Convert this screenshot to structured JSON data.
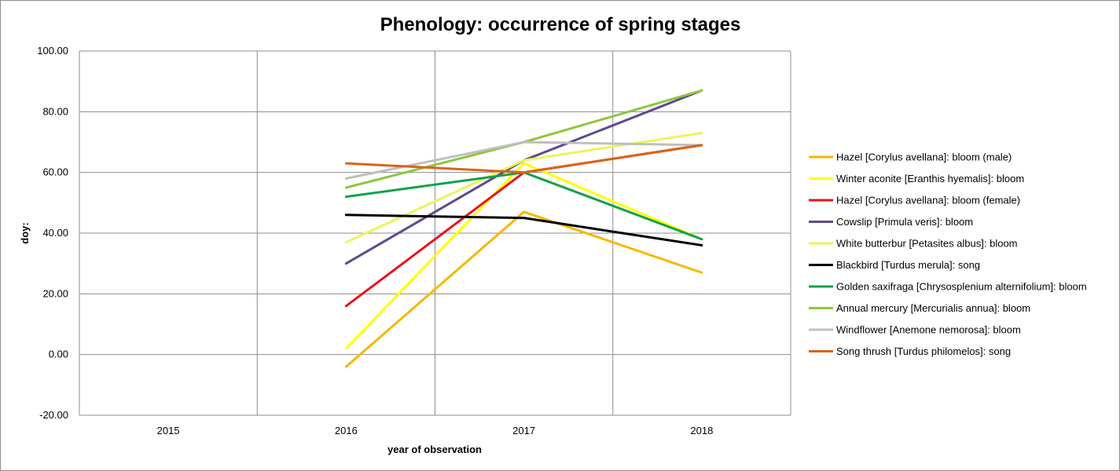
{
  "chart_data": {
    "type": "line",
    "title": "Phenology: occurrence of spring stages",
    "xlabel": "year of observation",
    "ylabel": "doy:",
    "categories": [
      "2015",
      "2016",
      "2017",
      "2018"
    ],
    "y_tick_labels": [
      "-20.00",
      "0.00",
      "20.00",
      "40.00",
      "60.00",
      "80.00",
      "100.00"
    ],
    "ylim": [
      -20,
      100
    ],
    "grid": true,
    "legend_position": "right",
    "series": [
      {
        "name": "Hazel [Corylus avellana]: bloom (male)",
        "color": "#f5b800",
        "values": [
          null,
          -4,
          47,
          27
        ]
      },
      {
        "name": "Winter aconite [Eranthis hyemalis]: bloom",
        "color": "#ffff00",
        "values": [
          null,
          2,
          63,
          38
        ]
      },
      {
        "name": "Hazel [Corylus avellana]: bloom (female)",
        "color": "#e8141c",
        "values": [
          null,
          16,
          60,
          69
        ]
      },
      {
        "name": "Cowslip [Primula veris]: bloom",
        "color": "#5e4a8b",
        "values": [
          null,
          30,
          64,
          87
        ]
      },
      {
        "name": "White butterbur [Petasites albus]: bloom",
        "color": "#eaf55a",
        "values": [
          null,
          37,
          64,
          73
        ]
      },
      {
        "name": "Blackbird [Turdus merula]: song",
        "color": "#000000",
        "values": [
          null,
          46,
          45,
          36
        ]
      },
      {
        "name": "Golden saxifraga [Chrysosplenium alternifolium]: bloom",
        "color": "#12a14a",
        "values": [
          null,
          52,
          60,
          38
        ]
      },
      {
        "name": "Annual mercury [Mercurialis annua]: bloom",
        "color": "#8dc63f",
        "values": [
          null,
          55,
          70,
          87
        ]
      },
      {
        "name": "Windflower [Anemone nemorosa]: bloom",
        "color": "#bfbfbf",
        "values": [
          null,
          58,
          70,
          69
        ]
      },
      {
        "name": "Song thrush [Turdus philomelos]: song",
        "color": "#d9641a",
        "values": [
          null,
          63,
          60,
          69
        ]
      }
    ]
  }
}
